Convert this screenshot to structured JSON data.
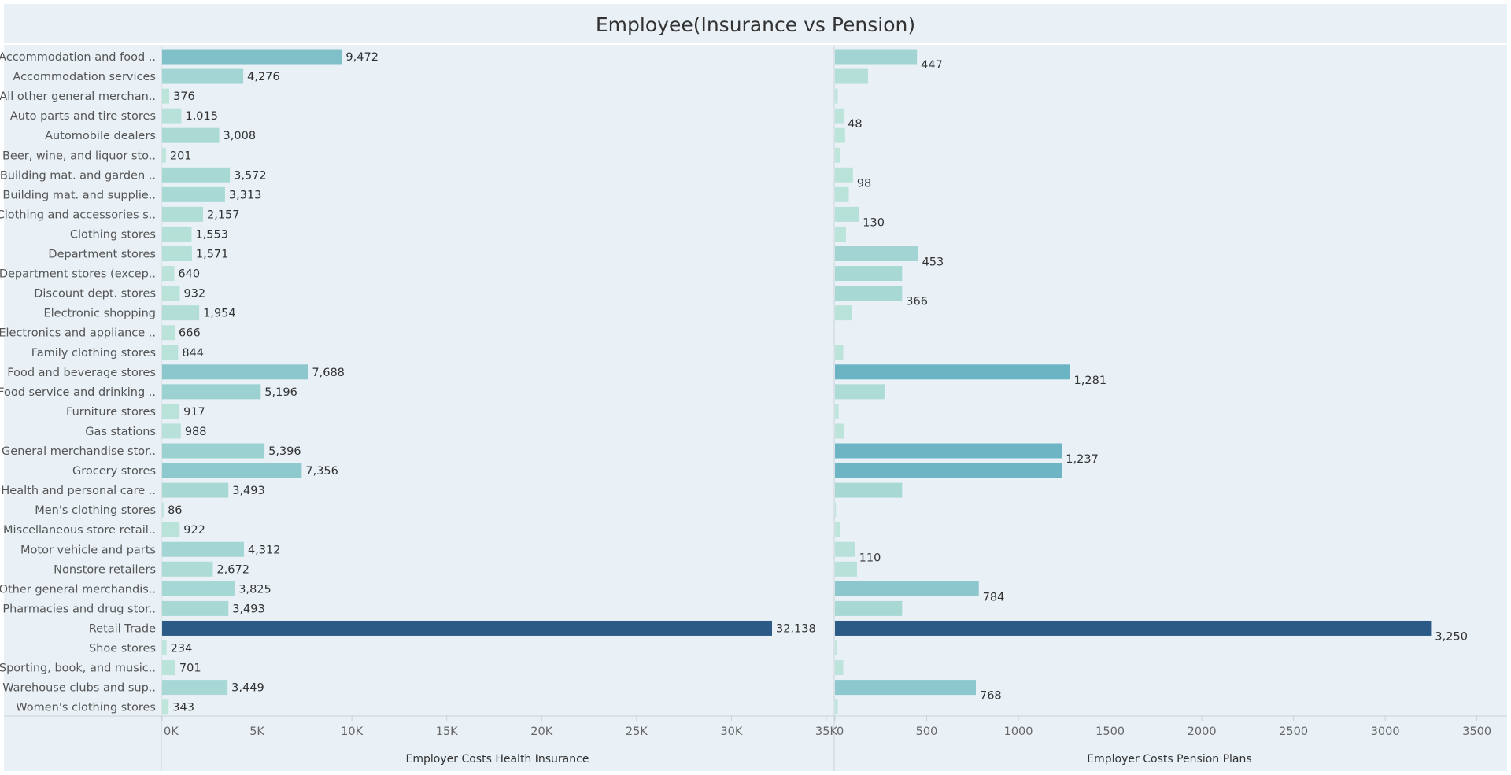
{
  "chart_data": {
    "type": "bar",
    "orientation": "horizontal",
    "title": "Employee(Insurance vs Pension)",
    "categories": [
      "Accommodation and food ..",
      "Accommodation services",
      "All other general merchan..",
      "Auto parts and tire stores",
      "Automobile dealers",
      "Beer, wine, and liquor sto..",
      "Building mat. and garden ..",
      "Building mat. and supplie..",
      "Clothing and accessories s..",
      "Clothing stores",
      "Department stores",
      "Department stores (excep..",
      "Discount dept. stores",
      "Electronic shopping",
      "Electronics and appliance ..",
      "Family clothing stores",
      "Food and beverage stores",
      "Food service and drinking ..",
      "Furniture stores",
      "Gas stations",
      "General merchandise stor..",
      "Grocery stores",
      "Health and personal care ..",
      "Men's clothing stores",
      "Miscellaneous store retail..",
      "Motor vehicle and parts",
      "Nonstore retailers",
      "Other general merchandis..",
      "Pharmacies and drug stor..",
      "Retail Trade",
      "Shoe stores",
      "Sporting, book, and  music..",
      "Warehouse clubs and sup..",
      "Women's clothing stores"
    ],
    "series": [
      {
        "name": "Employer Costs Health Insurance",
        "xlim": [
          0,
          35000
        ],
        "ticks": [
          0,
          5000,
          10000,
          15000,
          20000,
          25000,
          30000,
          35000
        ],
        "tick_labels": [
          "0K",
          "5K",
          "10K",
          "15K",
          "20K",
          "25K",
          "30K",
          "35K"
        ],
        "values": [
          9472,
          4276,
          376,
          1015,
          3008,
          201,
          3572,
          3313,
          2157,
          1553,
          1571,
          640,
          932,
          1954,
          666,
          844,
          7688,
          5196,
          917,
          988,
          5396,
          7356,
          3493,
          86,
          922,
          4312,
          2672,
          3825,
          3493,
          32138,
          234,
          701,
          3449,
          343
        ],
        "labels": [
          "9,472",
          "4,276",
          "376",
          "1,015",
          "3,008",
          "201",
          "3,572",
          "3,313",
          "2,157",
          "1,553",
          "1,571",
          "640",
          "932",
          "1,954",
          "666",
          "844",
          "7,688",
          "5,196",
          "917",
          "988",
          "5,396",
          "7,356",
          "3,493",
          "86",
          "922",
          "4,312",
          "2,672",
          "3,825",
          "3,493",
          "32,138",
          "234",
          "701",
          "3,449",
          "343"
        ]
      },
      {
        "name": "Employer Costs Pension Plans",
        "xlim": [
          0,
          3600
        ],
        "ticks": [
          0,
          500,
          1000,
          1500,
          2000,
          2500,
          3000,
          3500
        ],
        "tick_labels": [
          "0",
          "500",
          "1000",
          "1500",
          "2000",
          "2500",
          "3000",
          "3500"
        ],
        "values": [
          447,
          180,
          15,
          48,
          55,
          30,
          98,
          75,
          130,
          60,
          453,
          366,
          366,
          90,
          0,
          45,
          1281,
          270,
          20,
          50,
          1237,
          1237,
          366,
          5,
          30,
          110,
          120,
          784,
          366,
          3250,
          8,
          45,
          768,
          15
        ],
        "labels": [
          "447",
          "",
          "",
          "48",
          "",
          "",
          "98",
          "",
          "130",
          "",
          "453",
          "",
          "366",
          "",
          "",
          "",
          "1,281",
          "",
          "",
          "",
          "1,237",
          "",
          "",
          "",
          "",
          "110",
          "",
          "784",
          "",
          "3,250",
          "",
          "",
          "768",
          ""
        ]
      }
    ],
    "colors": {
      "background": "#e9f1f6",
      "min": "#bfe6db",
      "mid": "#69b3c3",
      "max": "#2b5a87"
    },
    "grid": false,
    "legend": "none"
  }
}
